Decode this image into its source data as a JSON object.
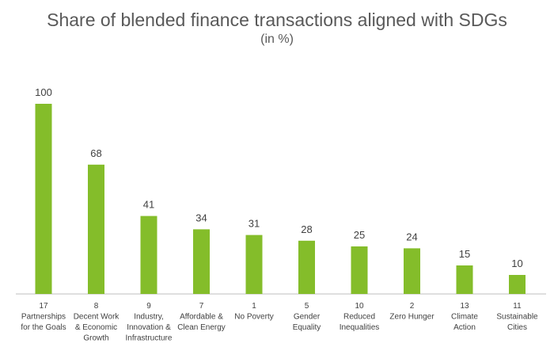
{
  "chart_data": {
    "type": "bar",
    "title": "Share of blended finance transactions aligned with SDGs",
    "subtitle": "(in %)",
    "categories": [
      [
        "17",
        "Partnerships",
        "for the Goals"
      ],
      [
        "8",
        "Decent Work",
        "& Economic",
        "Growth"
      ],
      [
        "9",
        "Industry,",
        "Innovation &",
        "Infrastructure"
      ],
      [
        "7",
        "Affordable &",
        "Clean Energy"
      ],
      [
        "1",
        "No Poverty"
      ],
      [
        "5",
        "Gender",
        "Equality"
      ],
      [
        "10",
        "Reduced",
        "Inequalities"
      ],
      [
        "2",
        "Zero Hunger"
      ],
      [
        "13",
        "Climate",
        "Action"
      ],
      [
        "11",
        "Sustainable",
        "Cities"
      ]
    ],
    "values": [
      100,
      68,
      41,
      34,
      31,
      28,
      25,
      24,
      15,
      10
    ],
    "ylim": [
      0,
      100
    ],
    "bar_color": "#84bd2a",
    "grid": false,
    "legend": "none"
  }
}
